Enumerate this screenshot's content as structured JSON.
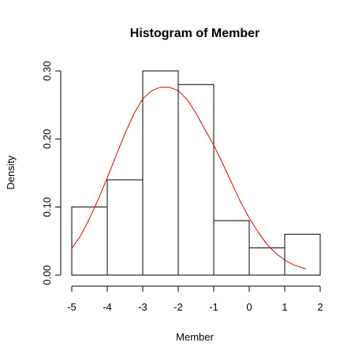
{
  "chart_data": {
    "type": "bar",
    "title": "Histogram of Member",
    "xlabel": "Member",
    "ylabel": "Density",
    "xlim": [
      -5,
      2
    ],
    "ylim": [
      0,
      0.3
    ],
    "x_ticks": [
      "-5",
      "-4",
      "-3",
      "-2",
      "-1",
      "0",
      "1",
      "2"
    ],
    "x_tick_values": [
      -5,
      -4,
      -3,
      -2,
      -1,
      0,
      1,
      2
    ],
    "y_ticks": [
      "0.00",
      "0.10",
      "0.20",
      "0.30"
    ],
    "y_tick_values": [
      0,
      0.1,
      0.2,
      0.3
    ],
    "bins": [
      {
        "from": -5,
        "to": -4,
        "density": 0.1
      },
      {
        "from": -4,
        "to": -3,
        "density": 0.14
      },
      {
        "from": -3,
        "to": -2,
        "density": 0.3
      },
      {
        "from": -2,
        "to": -1,
        "density": 0.28
      },
      {
        "from": -1,
        "to": 0,
        "density": 0.08
      },
      {
        "from": 0,
        "to": 1,
        "density": 0.04
      },
      {
        "from": 1,
        "to": 2,
        "density": 0.06
      }
    ],
    "overlay": {
      "type": "line",
      "color": "#e00000",
      "points": [
        [
          -5,
          0.039
        ],
        [
          -4.75,
          0.058
        ],
        [
          -4.5,
          0.083
        ],
        [
          -4.25,
          0.112
        ],
        [
          -4,
          0.143
        ],
        [
          -3.75,
          0.176
        ],
        [
          -3.5,
          0.208
        ],
        [
          -3.25,
          0.237
        ],
        [
          -3,
          0.259
        ],
        [
          -2.75,
          0.271
        ],
        [
          -2.5,
          0.276
        ],
        [
          -2.25,
          0.276
        ],
        [
          -2,
          0.271
        ],
        [
          -1.75,
          0.258
        ],
        [
          -1.5,
          0.238
        ],
        [
          -1.25,
          0.214
        ],
        [
          -1,
          0.191
        ],
        [
          -0.75,
          0.164
        ],
        [
          -0.5,
          0.136
        ],
        [
          -0.25,
          0.108
        ],
        [
          0,
          0.084
        ],
        [
          0.25,
          0.063
        ],
        [
          0.5,
          0.045
        ],
        [
          0.75,
          0.032
        ],
        [
          1,
          0.022
        ],
        [
          1.25,
          0.015
        ],
        [
          1.6,
          0.009
        ]
      ]
    },
    "colors": {
      "bars": "#000000",
      "curve": "#e00000"
    }
  }
}
